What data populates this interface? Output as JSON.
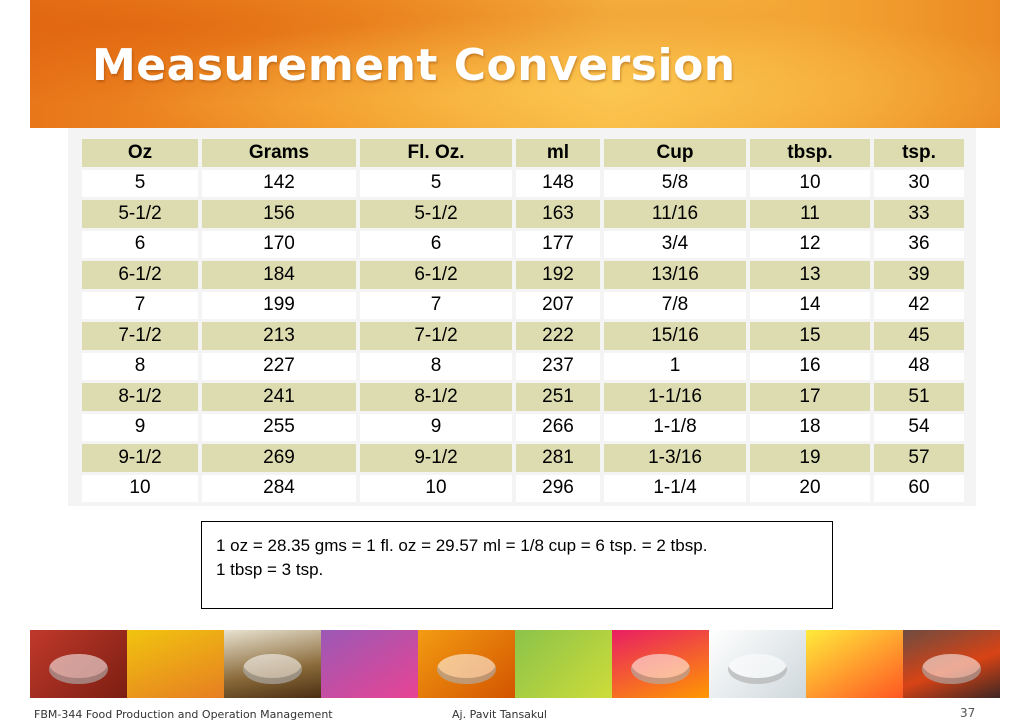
{
  "slide": {
    "title": "Measurement Conversion"
  },
  "table": {
    "headers": [
      "Oz",
      "Grams",
      "Fl. Oz.",
      "ml",
      "Cup",
      "tbsp.",
      "tsp."
    ],
    "rows": [
      [
        "5",
        "142",
        "5",
        "148",
        "5/8",
        "10",
        "30"
      ],
      [
        "5-1/2",
        "156",
        "5-1/2",
        "163",
        "11/16",
        "11",
        "33"
      ],
      [
        "6",
        "170",
        "6",
        "177",
        "3/4",
        "12",
        "36"
      ],
      [
        "6-1/2",
        "184",
        "6-1/2",
        "192",
        "13/16",
        "13",
        "39"
      ],
      [
        "7",
        "199",
        "7",
        "207",
        "7/8",
        "14",
        "42"
      ],
      [
        "7-1/2",
        "213",
        "7-1/2",
        "222",
        "15/16",
        "15",
        "45"
      ],
      [
        "8",
        "227",
        "8",
        "237",
        "1",
        "16",
        "48"
      ],
      [
        "8-1/2",
        "241",
        "8-1/2",
        "251",
        "1-1/16",
        "17",
        "51"
      ],
      [
        "9",
        "255",
        "9",
        "266",
        "1-1/8",
        "18",
        "54"
      ],
      [
        "9-1/2",
        "269",
        "9-1/2",
        "281",
        "1-3/16",
        "19",
        "57"
      ],
      [
        "10",
        "284",
        "10",
        "296",
        "1-1/4",
        "20",
        "60"
      ]
    ]
  },
  "note": {
    "line1": "1 oz = 28.35 gms = 1 fl. oz = 29.57 ml = 1/8 cup = 6 tsp. = 2 tbsp.",
    "line2": "1 tbsp = 3 tsp."
  },
  "footer": {
    "course": "FBM-344 Food Production and Operation Management",
    "author": "Aj. Pavit Tansakul",
    "page_number": "37"
  },
  "colors": {
    "banner_orange": "#f29a2a",
    "row_shade": "#dcdcb0"
  }
}
